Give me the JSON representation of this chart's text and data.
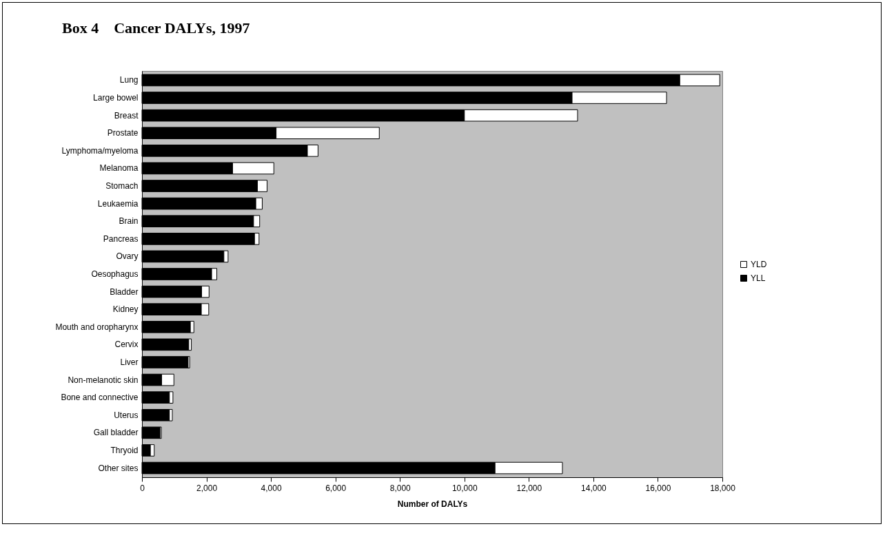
{
  "chart_data": {
    "type": "bar",
    "orientation": "horizontal",
    "stacked": true,
    "title": "Box 4    Cancer DALYs, 1997",
    "xlabel": "Number of DALYs",
    "categories": [
      "Lung",
      "Large bowel",
      "Breast",
      "Prostate",
      "Lymphoma/myeloma",
      "Melanoma",
      "Stomach",
      "Leukaemia",
      "Brain",
      "Pancreas",
      "Ovary",
      "Oesophagus",
      "Bladder",
      "Kidney",
      "Mouth and oropharynx",
      "Cervix",
      "Liver",
      "Non-melanotic skin",
      "Bone and connective",
      "Uterus",
      "Gall bladder",
      "Thryoid",
      "Other sites"
    ],
    "series": [
      {
        "name": "YLL",
        "color": "#000000",
        "values": [
          16680,
          13340,
          10000,
          4160,
          5130,
          2810,
          3580,
          3530,
          3460,
          3490,
          2540,
          2160,
          1850,
          1840,
          1500,
          1450,
          1430,
          610,
          850,
          850,
          560,
          260,
          10950
        ]
      },
      {
        "name": "YLD",
        "color": "#ffffff",
        "values": [
          1240,
          2930,
          3510,
          3200,
          330,
          1280,
          300,
          200,
          190,
          140,
          130,
          160,
          230,
          230,
          110,
          80,
          50,
          380,
          110,
          90,
          40,
          120,
          2090
        ]
      }
    ],
    "xlim": [
      0,
      18000
    ],
    "xticks": [
      0,
      {
        "value": 2000,
        "label": "2,000"
      },
      {
        "value": 4000,
        "label": "4,000"
      },
      {
        "value": 6000,
        "label": "6,000"
      },
      {
        "value": 8000,
        "label": "8,000"
      },
      {
        "value": 10000,
        "label": "10,000"
      },
      {
        "value": 12000,
        "label": "12,000"
      },
      {
        "value": 14000,
        "label": "14,000"
      },
      {
        "value": 16000,
        "label": "16,000"
      },
      {
        "value": 18000,
        "label": "18,000"
      }
    ],
    "grid": false,
    "legend": "right"
  }
}
